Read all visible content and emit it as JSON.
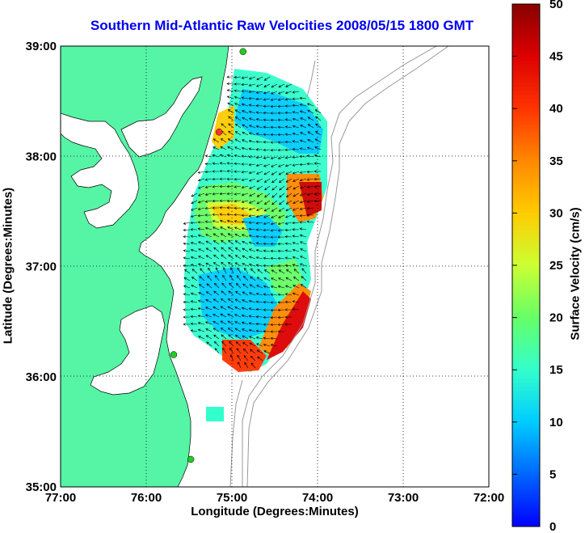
{
  "title": "Southern Mid-Atlantic Raw Velocities 2008/05/15 1800 GMT",
  "xlabel": "Longitude (Degrees:Minutes)",
  "ylabel": "Latitude (Degrees:Minutes)",
  "colorbar": {
    "label": "Surface Velocity (cm/s)",
    "min": 0,
    "max": 50,
    "ticks": [
      "0",
      "5",
      "10",
      "15",
      "20",
      "25",
      "30",
      "35",
      "40",
      "45",
      "50"
    ]
  },
  "chart_data": {
    "type": "heatmap",
    "x_ticks": [
      "77:00",
      "76:00",
      "75:00",
      "74:00",
      "73:00",
      "72:00"
    ],
    "y_ticks": [
      "39:00",
      "38:00",
      "37:00",
      "36:00",
      "35:00"
    ],
    "xlim": [
      -77,
      -72
    ],
    "ylim": [
      35,
      39
    ],
    "grid": true,
    "stations": [
      {
        "lon": -74.87,
        "lat": 38.95,
        "color": "#22cc22"
      },
      {
        "lon": -75.15,
        "lat": 38.22,
        "color": "#ff3333"
      },
      {
        "lon": -75.68,
        "lat": 36.2,
        "color": "#22cc22"
      },
      {
        "lon": -75.48,
        "lat": 35.25,
        "color": "#22cc22"
      }
    ]
  }
}
